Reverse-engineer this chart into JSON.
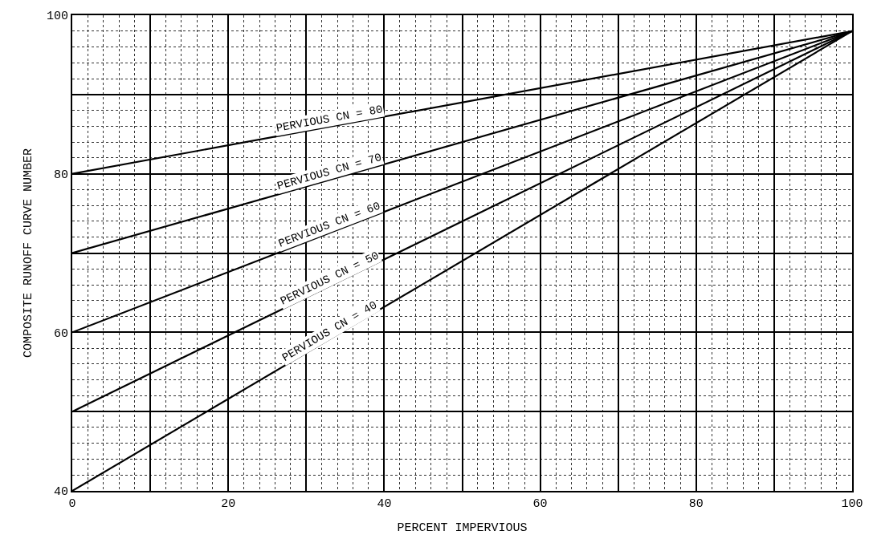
{
  "chart_data": {
    "type": "line",
    "xlabel": "PERCENT IMPERVIOUS",
    "ylabel": "COMPOSITE RUNOFF CURVE NUMBER",
    "x": [
      0,
      100
    ],
    "series": [
      {
        "name": "PERVIOUS CN = 80",
        "color": "#000000",
        "values": [
          80,
          98
        ]
      },
      {
        "name": "PERVIOUS CN = 70",
        "color": "#000000",
        "values": [
          70,
          98
        ]
      },
      {
        "name": "PERVIOUS CN = 60",
        "color": "#000000",
        "values": [
          60,
          98
        ]
      },
      {
        "name": "PERVIOUS CN = 50",
        "color": "#000000",
        "values": [
          50,
          98
        ]
      },
      {
        "name": "PERVIOUS CN = 40",
        "color": "#000000",
        "values": [
          40,
          98
        ]
      }
    ],
    "xlim": [
      0,
      100
    ],
    "ylim": [
      40,
      100
    ],
    "xticks": [
      0,
      {
        "value": 10,
        "label": null
      },
      20,
      {
        "value": 30,
        "label": null
      },
      40,
      {
        "value": 50,
        "label": null
      },
      60,
      {
        "value": 70,
        "label": null
      },
      80,
      {
        "value": 90,
        "label": null
      },
      100
    ],
    "yticks": [
      40,
      {
        "value": 50,
        "label": null
      },
      60,
      {
        "value": 70,
        "label": null
      },
      80,
      {
        "value": 90,
        "label": null
      },
      100
    ],
    "grid": true,
    "legend": false,
    "marker": "none",
    "line_style": "solid"
  }
}
